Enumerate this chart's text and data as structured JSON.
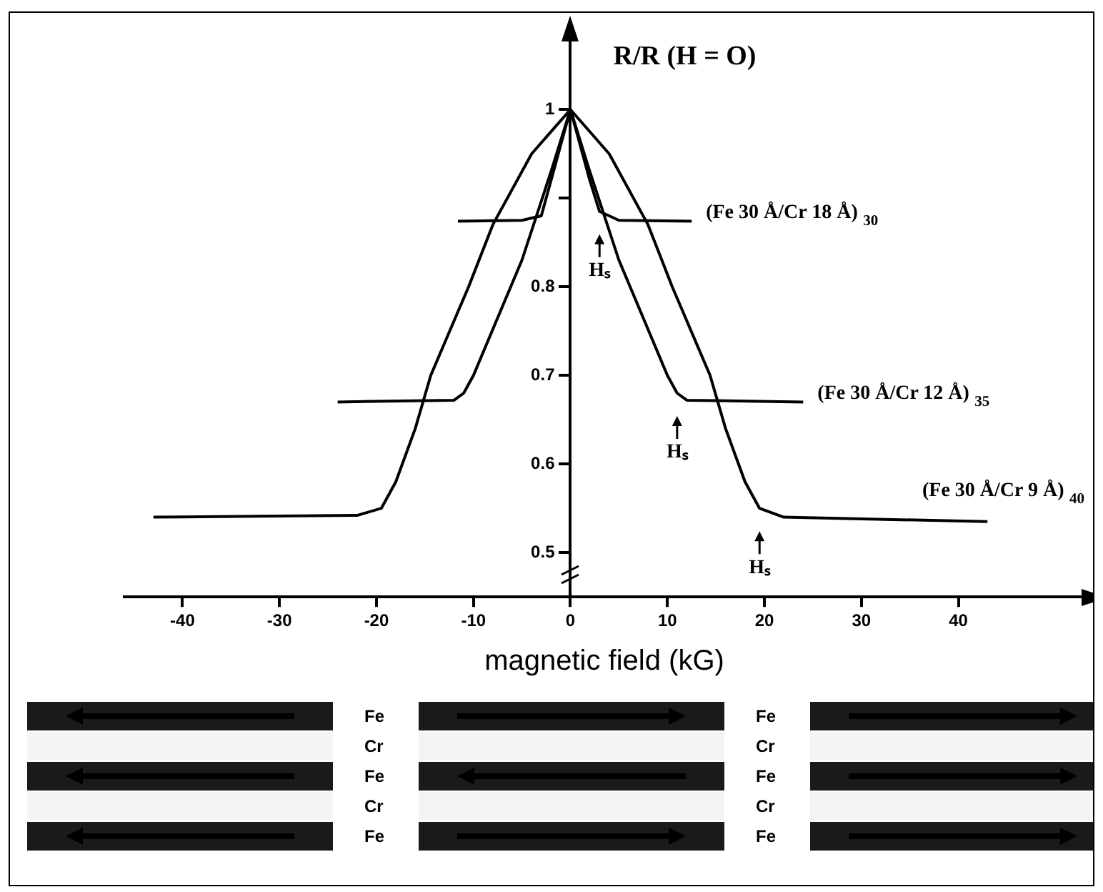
{
  "chart_data": {
    "type": "line",
    "xlabel": "magnetic field (kG)",
    "ylabel": "R/R (H = O)",
    "xlim": [
      -46,
      53
    ],
    "ylim": [
      0.45,
      1.08
    ],
    "xticks": [
      -40,
      -30,
      -20,
      -10,
      0,
      10,
      20,
      30,
      40
    ],
    "yticks": [
      {
        "value": 0.5,
        "label": "0.5"
      },
      {
        "value": 0.6,
        "label": "0.6"
      },
      {
        "value": 0.7,
        "label": "0.7"
      },
      {
        "value": 0.8,
        "label": "0.8"
      },
      {
        "value": 0.9,
        "label": null
      },
      1
    ],
    "grid": false,
    "legend": false,
    "marker": "none",
    "line_style": "solid",
    "series": [
      {
        "name": "(Fe 30 Å/Cr 18 Å) $_{30}$",
        "color": "#000000",
        "x": [
          -11.6,
          -5,
          -3,
          -2,
          -1,
          0,
          1,
          2,
          3,
          5,
          12.5
        ],
        "values": [
          0.874,
          0.875,
          0.88,
          0.92,
          0.96,
          1,
          0.96,
          0.92,
          0.885,
          0.875,
          0.874
        ]
      },
      {
        "name": "(Fe 30 Å/Cr 12 Å) $_{35}$",
        "color": "#000000",
        "x": [
          -24,
          -12,
          -11,
          -10,
          -5,
          -2,
          0,
          2,
          5,
          10,
          11,
          12,
          24
        ],
        "values": [
          0.67,
          0.672,
          0.68,
          0.7,
          0.83,
          0.93,
          1,
          0.93,
          0.83,
          0.7,
          0.68,
          0.672,
          0.67
        ]
      },
      {
        "name": "(Fe 30 Å/Cr 9 Å) $_{40}$",
        "color": "#000000",
        "x": [
          -43,
          -22,
          -19.5,
          -18,
          -16,
          -14.4,
          -10.5,
          -8,
          -4,
          0,
          4,
          8,
          10.5,
          14.4,
          16,
          18,
          19.5,
          22,
          43
        ],
        "values": [
          0.54,
          0.542,
          0.55,
          0.58,
          0.64,
          0.7,
          0.8,
          0.87,
          0.95,
          1,
          0.95,
          0.87,
          0.8,
          0.7,
          0.64,
          0.58,
          0.55,
          0.54,
          0.535
        ]
      }
    ],
    "annotations": [
      {
        "text": "Hₛ",
        "x": 3,
        "y": 0.885
      },
      {
        "text": "Hₛ",
        "x": 11,
        "y": 0.68
      },
      {
        "text": "Hₛ",
        "x": 19.5,
        "y": 0.55
      },
      "Fe",
      "Cr",
      "Fe",
      "Cr",
      "Fe",
      "Fe",
      "Cr",
      "Fe",
      "Cr",
      "Fe"
    ]
  }
}
